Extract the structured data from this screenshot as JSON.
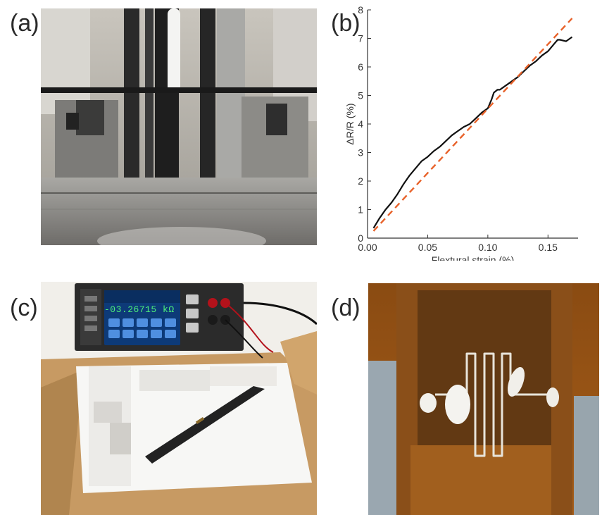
{
  "panels": {
    "a": {
      "label": "(a)"
    },
    "b": {
      "label": "(b)"
    },
    "c": {
      "label": "(c)",
      "multimeter_reading": "-03.26715 kΩ"
    },
    "d": {
      "label": "(d)"
    }
  },
  "chart_data": {
    "type": "line",
    "title": "",
    "xlabel": "Flextural strain (%)",
    "ylabel": "ΔR/R (%)",
    "xlim": [
      0.0,
      0.175
    ],
    "ylim": [
      0,
      8
    ],
    "xticks": [
      "0.00",
      "0.05",
      "0.10",
      "0.15"
    ],
    "yticks": [
      "0",
      "1",
      "2",
      "3",
      "4",
      "5",
      "6",
      "7",
      "8"
    ],
    "grid": false,
    "series": [
      {
        "style": "solid",
        "color": "#111111",
        "x": [
          0.005,
          0.01,
          0.015,
          0.02,
          0.025,
          0.03,
          0.035,
          0.04,
          0.045,
          0.05,
          0.055,
          0.06,
          0.065,
          0.07,
          0.075,
          0.08,
          0.085,
          0.09,
          0.095,
          0.1,
          0.103,
          0.105,
          0.108,
          0.11,
          0.115,
          0.12,
          0.125,
          0.13,
          0.135,
          0.14,
          0.145,
          0.15,
          0.155,
          0.158,
          0.16,
          0.165,
          0.17
        ],
        "y": [
          0.35,
          0.7,
          1.0,
          1.25,
          1.55,
          1.9,
          2.2,
          2.45,
          2.7,
          2.85,
          3.05,
          3.2,
          3.4,
          3.6,
          3.75,
          3.9,
          4.0,
          4.2,
          4.4,
          4.55,
          4.85,
          5.1,
          5.2,
          5.2,
          5.35,
          5.5,
          5.65,
          5.85,
          6.05,
          6.2,
          6.4,
          6.55,
          6.8,
          6.95,
          6.95,
          6.9,
          7.05
        ]
      },
      {
        "style": "dashed",
        "color": "#e8622a",
        "x": [
          0.005,
          0.17
        ],
        "y": [
          0.25,
          7.7
        ]
      }
    ]
  }
}
